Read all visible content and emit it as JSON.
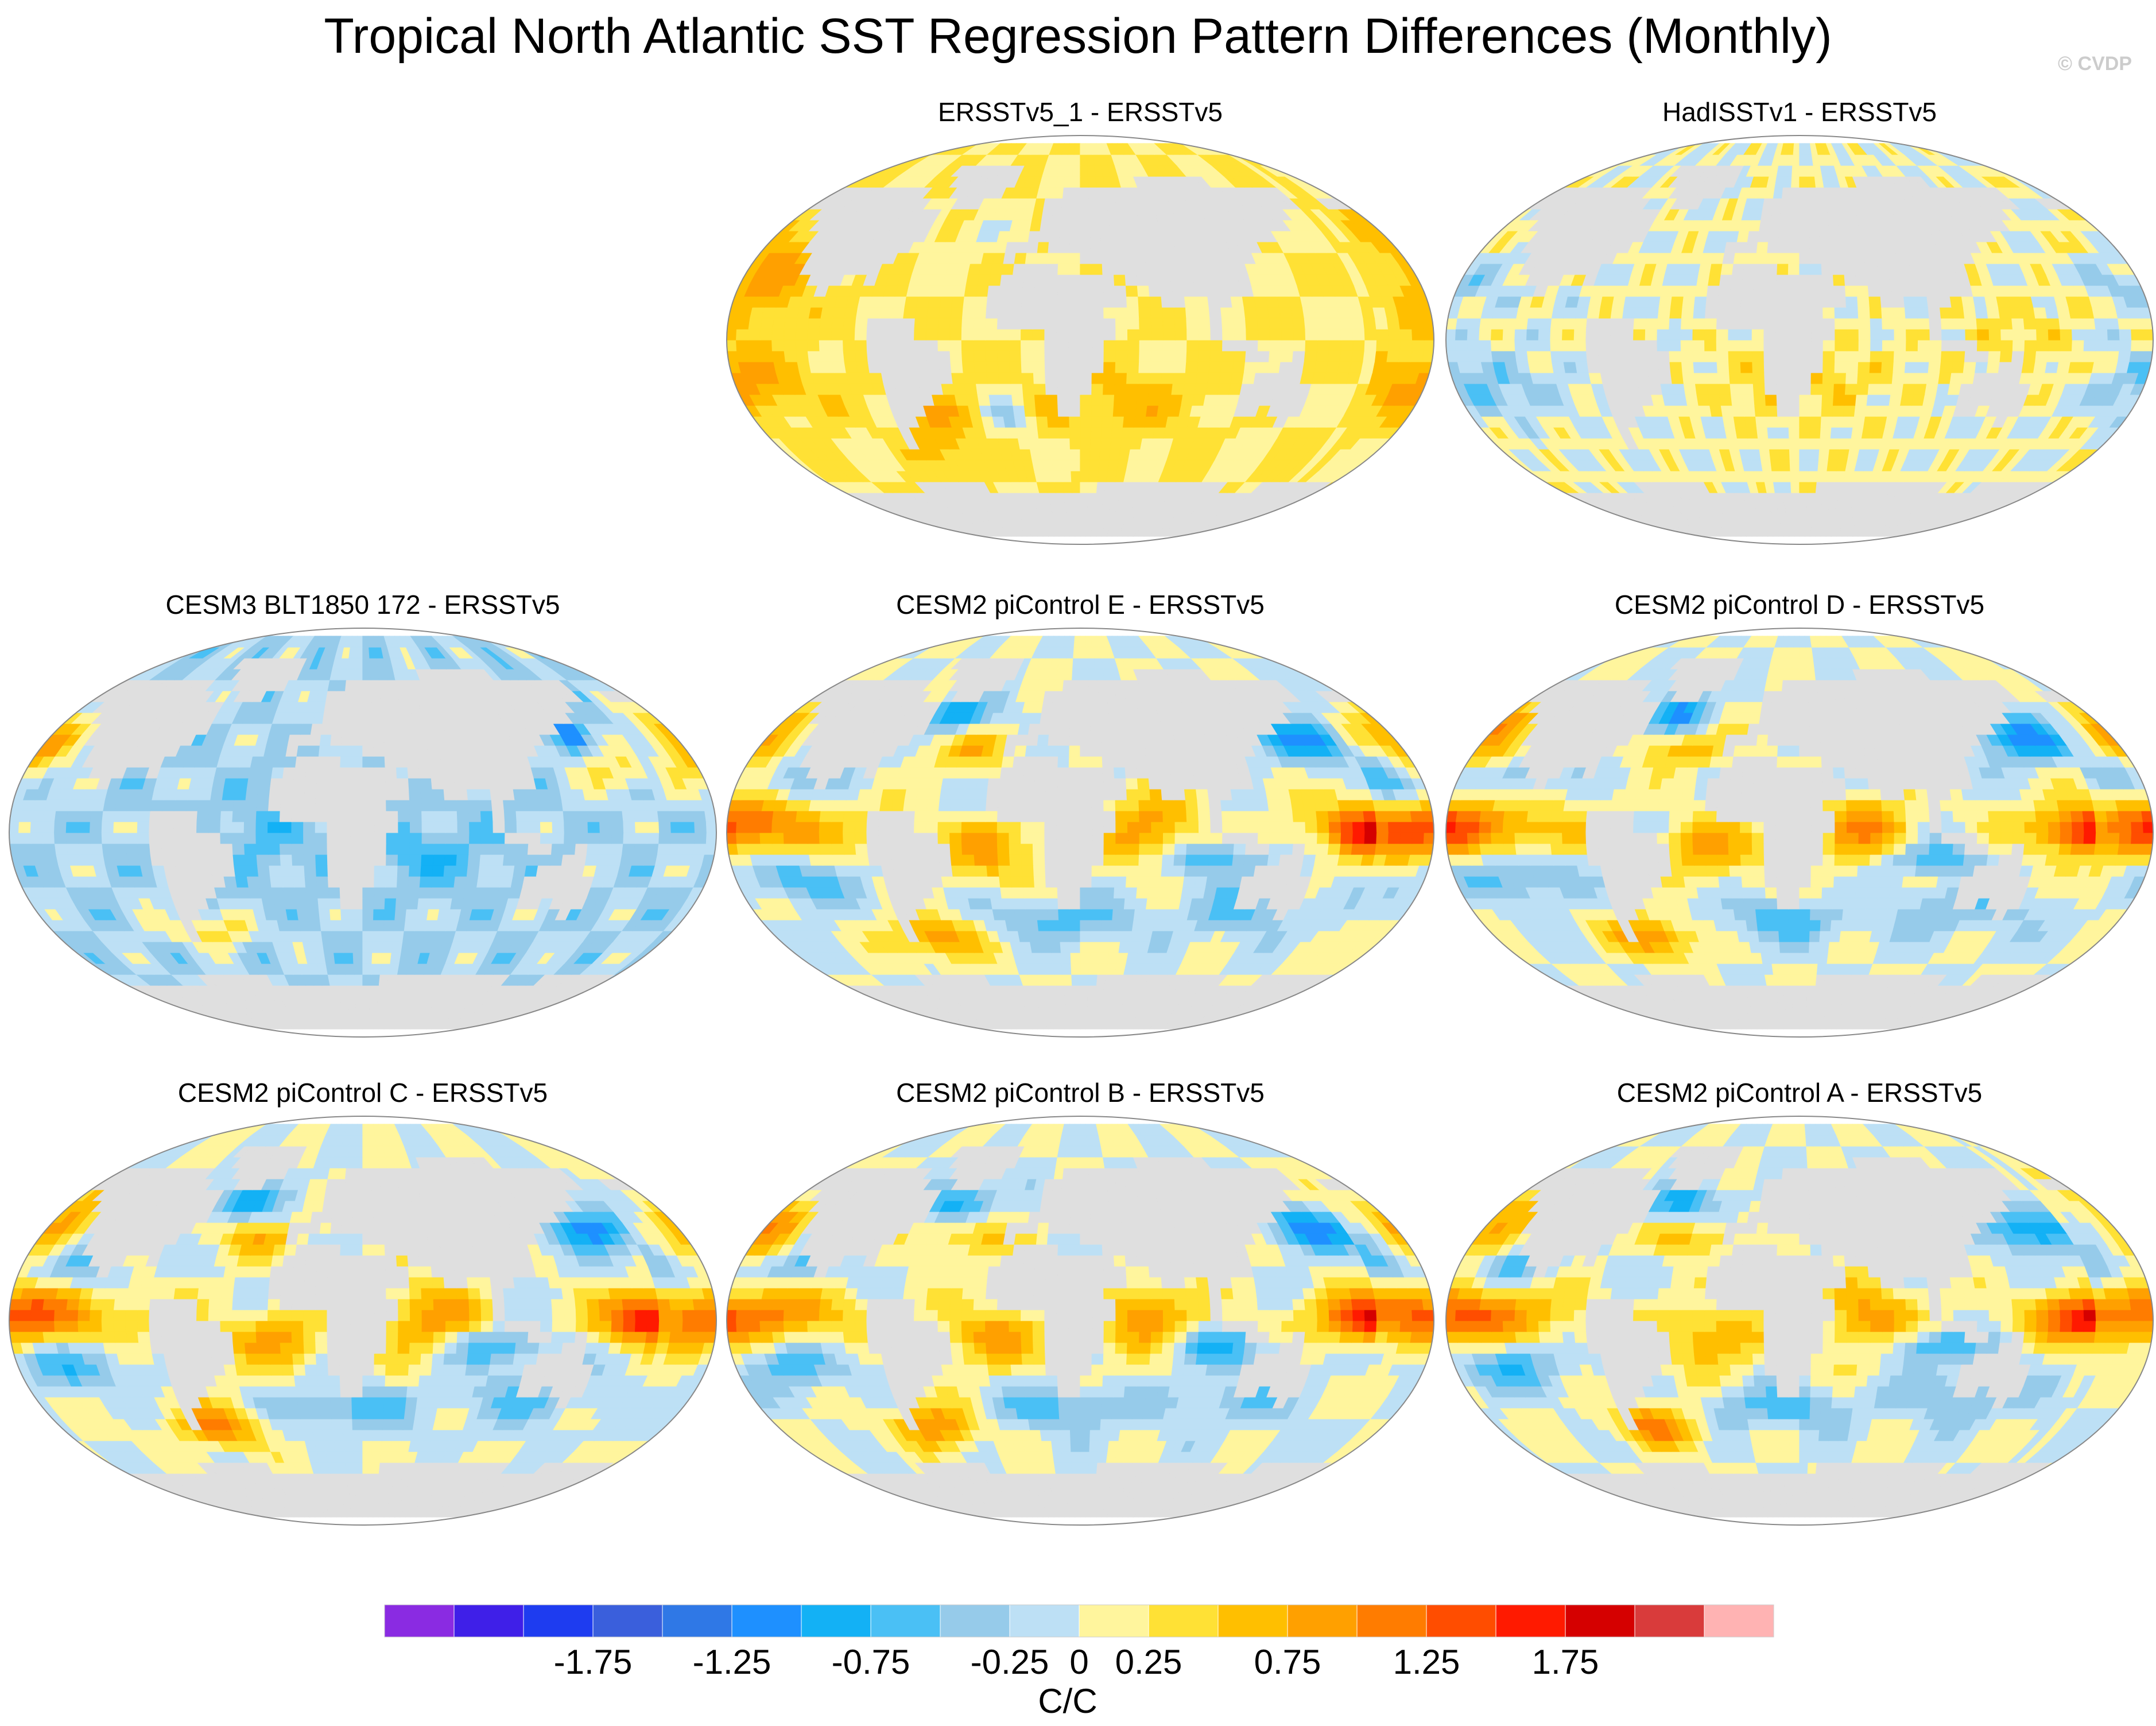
{
  "chart_data": {
    "type": "heatmap",
    "title": "Tropical North Atlantic SST Regression Pattern Differences (Monthly)",
    "credit": "© CVDP",
    "projection": "Robinson global maps, land masked grey",
    "panels": [
      {
        "name": "ERSSTv5_1 - ERSSTv5",
        "pattern": "ersst1"
      },
      {
        "name": "HadISSTv1 - ERSSTv5",
        "pattern": "hadisst"
      },
      {
        "name": "CESM3 BLT1850 172 - ERSSTv5",
        "pattern": "cesm3"
      },
      {
        "name": "CESM2 piControl E - ERSSTv5",
        "pattern": "model"
      },
      {
        "name": "CESM2 piControl D - ERSSTv5",
        "pattern": "model"
      },
      {
        "name": "CESM2 piControl C - ERSSTv5",
        "pattern": "model"
      },
      {
        "name": "CESM2 piControl B - ERSSTv5",
        "pattern": "model"
      },
      {
        "name": "CESM2 piControl A - ERSSTv5",
        "pattern": "model"
      }
    ],
    "colorbar": {
      "label": "C/C",
      "levels": [
        -1.75,
        -1.5,
        -1.25,
        -1.0,
        -0.75,
        -0.5,
        -0.25,
        0,
        0.25,
        0.5,
        0.75,
        1.0,
        1.25,
        1.5,
        1.75
      ],
      "tick_labels": [
        "-1.75",
        "-1.25",
        "-0.75",
        "-0.25",
        "0",
        "0.25",
        "0.75",
        "1.25",
        "1.75"
      ],
      "colors": [
        "#8a2be2",
        "#3f1fe8",
        "#1e3cf0",
        "#3a5fdc",
        "#2f78e6",
        "#1e90ff",
        "#13b1f5",
        "#4ac0f5",
        "#96cbea",
        "#bde0f5",
        "#fff59d",
        "#ffe135",
        "#ffbf00",
        "#ffa000",
        "#ff7c00",
        "#ff4d00",
        "#ff1a00",
        "#d50000",
        "#d93b3b",
        "#ffb3b3"
      ]
    }
  }
}
